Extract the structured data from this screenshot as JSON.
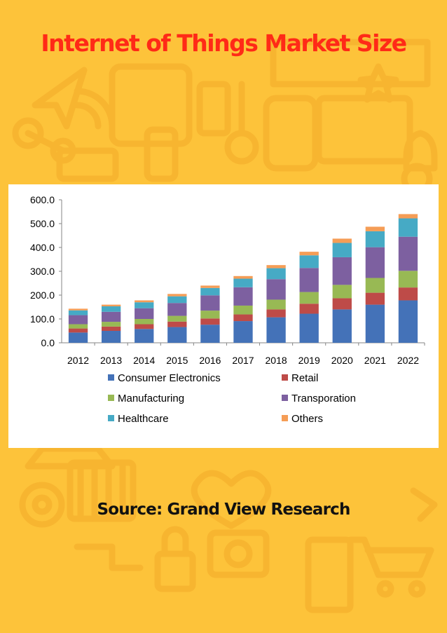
{
  "page": {
    "title": "Internet of Things Market Size",
    "source": "Source: Grand View Research"
  },
  "colors": {
    "background": "#FDC33A",
    "decor": "#F7B530",
    "title": "#FF2A17"
  },
  "chart_data": {
    "type": "bar",
    "stacked": true,
    "title": "",
    "xlabel": "",
    "ylabel": "",
    "ylim": [
      0,
      600
    ],
    "yticks": [
      "0.0",
      "100.0",
      "200.0",
      "300.0",
      "400.0",
      "500.0",
      "600.0"
    ],
    "categories": [
      "2012",
      "2013",
      "2014",
      "2015",
      "2016",
      "2017",
      "2018",
      "2019",
      "2020",
      "2021",
      "2022"
    ],
    "legend_position": "bottom",
    "series": [
      {
        "name": "Consumer Electronics",
        "color": "#4472B8",
        "values": [
          43,
          50,
          58,
          66,
          76,
          91,
          107,
          122,
          140,
          160,
          178
        ]
      },
      {
        "name": "Retail",
        "color": "#BE4B48",
        "values": [
          17,
          18,
          20,
          23,
          26,
          28,
          33,
          42,
          47,
          50,
          54
        ]
      },
      {
        "name": "Manufacturing",
        "color": "#98B954",
        "values": [
          18,
          20,
          22,
          24,
          33,
          37,
          41,
          49,
          56,
          62,
          70
        ]
      },
      {
        "name": "Transporation",
        "color": "#7D60A0",
        "values": [
          38,
          42,
          45,
          54,
          64,
          77,
          86,
          101,
          116,
          129,
          143
        ]
      },
      {
        "name": "Healthcare",
        "color": "#46AAC5",
        "values": [
          20,
          23,
          25,
          28,
          31,
          36,
          46,
          53,
          60,
          67,
          77
        ]
      },
      {
        "name": "Others",
        "color": "#F59D56",
        "values": [
          7,
          7,
          8,
          10,
          10,
          11,
          13,
          15,
          18,
          19,
          18
        ]
      }
    ]
  }
}
